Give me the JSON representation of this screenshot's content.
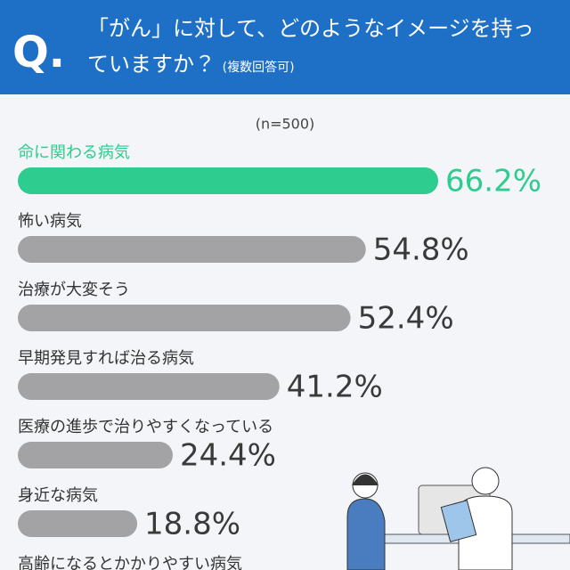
{
  "header": {
    "mark": "Q.",
    "title": "「がん」に対して、どのようなイメージを持っていますか？",
    "note": "(複数回答可)"
  },
  "chart_data": {
    "type": "bar",
    "orientation": "horizontal",
    "subtitle": "(n=500)",
    "categories": [
      "命に関わる病気",
      "怖い病気",
      "治療が大変そう",
      "早期発見すれば治る病気",
      "医療の進歩で治りやすくなっている",
      "身近な病気",
      "高齢になるとかかりやすい病気"
    ],
    "values": [
      66.2,
      54.8,
      52.4,
      41.2,
      24.4,
      18.8,
      null
    ],
    "value_labels": [
      "66.2%",
      "54.8%",
      "52.4%",
      "41.2%",
      "24.4%",
      "18.8%",
      null
    ],
    "colors": [
      "#2ecc8e",
      "#a3a3a5",
      "#a3a3a5",
      "#a3a3a5",
      "#a3a3a5",
      "#a3a3a5",
      "#a3a3a5"
    ],
    "label_colors": [
      "#2ecc8e",
      "#3a3a3a",
      "#3a3a3a",
      "#3a3a3a",
      "#3a3a3a",
      "#3a3a3a",
      "#3a3a3a"
    ]
  }
}
